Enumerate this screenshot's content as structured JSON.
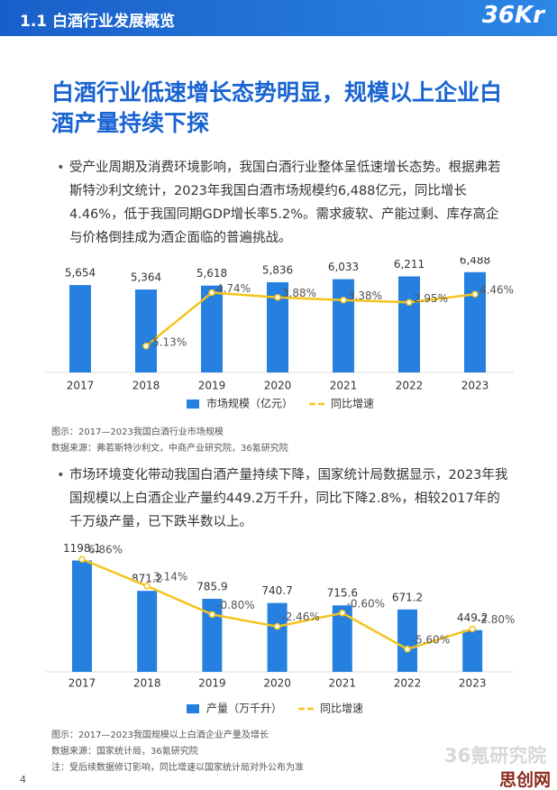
{
  "header": {
    "section": "1.1 白酒行业发展概览",
    "logo": "36Kr"
  },
  "title": "白酒行业低速增长态势明显，规模以上企业白酒产量持续下探",
  "paragraphs": [
    "受产业周期及消费环境影响，我国白酒行业整体呈低速增长态势。根据弗若斯特沙利文统计，2023年我国白酒市场规模约6,488亿元，同比增长4.46%，低于我国同期GDP增长率5.2%。需求疲软、产能过剩、库存高企与价格倒挂成为酒企面临的普遍挑战。",
    "市场环境变化带动我国白酒产量持续下降，国家统计局数据显示，2023年我国规模以上白酒企业产量约449.2万千升，同比下降2.8%，相较2017年的千万级产量，已下跌半数以上。"
  ],
  "chart_data": [
    {
      "type": "bar",
      "categories": [
        "2017",
        "2018",
        "2019",
        "2020",
        "2021",
        "2022",
        "2023"
      ],
      "series": [
        {
          "name": "市场规模（亿元）",
          "color": "#2680e0",
          "values": [
            5654,
            5364,
            5618,
            5836,
            6033,
            6211,
            6488
          ],
          "value_labels": [
            "5,654",
            "5,364",
            "5,618",
            "5,836",
            "6,033",
            "6,211",
            "6,488"
          ]
        },
        {
          "name": "同比增速",
          "type": "line",
          "axis": "y2",
          "color": "#f5c41b",
          "values": [
            null,
            -5.13,
            4.74,
            3.88,
            3.38,
            2.95,
            4.46
          ],
          "value_labels": [
            null,
            "-5.13%",
            "4.74%",
            "3.88%",
            "3.38%",
            "2.95%",
            "4.46%"
          ]
        }
      ],
      "ylim": [
        0,
        7000
      ],
      "y2lim": [
        -10,
        10
      ]
    },
    {
      "type": "bar",
      "categories": [
        "2017",
        "2018",
        "2019",
        "2020",
        "2021",
        "2022",
        "2023"
      ],
      "series": [
        {
          "name": "产量（万千升）",
          "color": "#2680e0",
          "values": [
            1198.1,
            871.2,
            785.9,
            740.7,
            715.6,
            671.2,
            449.2
          ]
        },
        {
          "name": "同比增速",
          "type": "line",
          "axis": "y2",
          "color": "#f5c41b",
          "values": [
            6.86,
            3.14,
            -0.8,
            -2.46,
            -0.6,
            -5.6,
            -2.8
          ],
          "value_labels": [
            "6.86%",
            "3.14%",
            "-0.80%",
            "-2.46%",
            "-0.60%",
            "-5.60%",
            "-2.80%"
          ]
        }
      ],
      "ylim": [
        0,
        1300
      ],
      "y2lim": [
        -8.75,
        8
      ]
    }
  ],
  "captions": [
    {
      "caption": "图示：2017—2023我国白酒行业市场规模",
      "source": "数据来源：弗若斯特沙利文，中商产业研究院，36氪研究院"
    },
    {
      "caption": "图示：2017—2023我国规模以上白酒企业产量及增长",
      "source": "数据来源：国家统计局，36氪研究院",
      "note": "注：受后续数据修订影响，同比增速以国家统计局对外公布为准"
    }
  ],
  "page_number": "4",
  "watermark": [
    "36氪研究院",
    "思创网"
  ]
}
